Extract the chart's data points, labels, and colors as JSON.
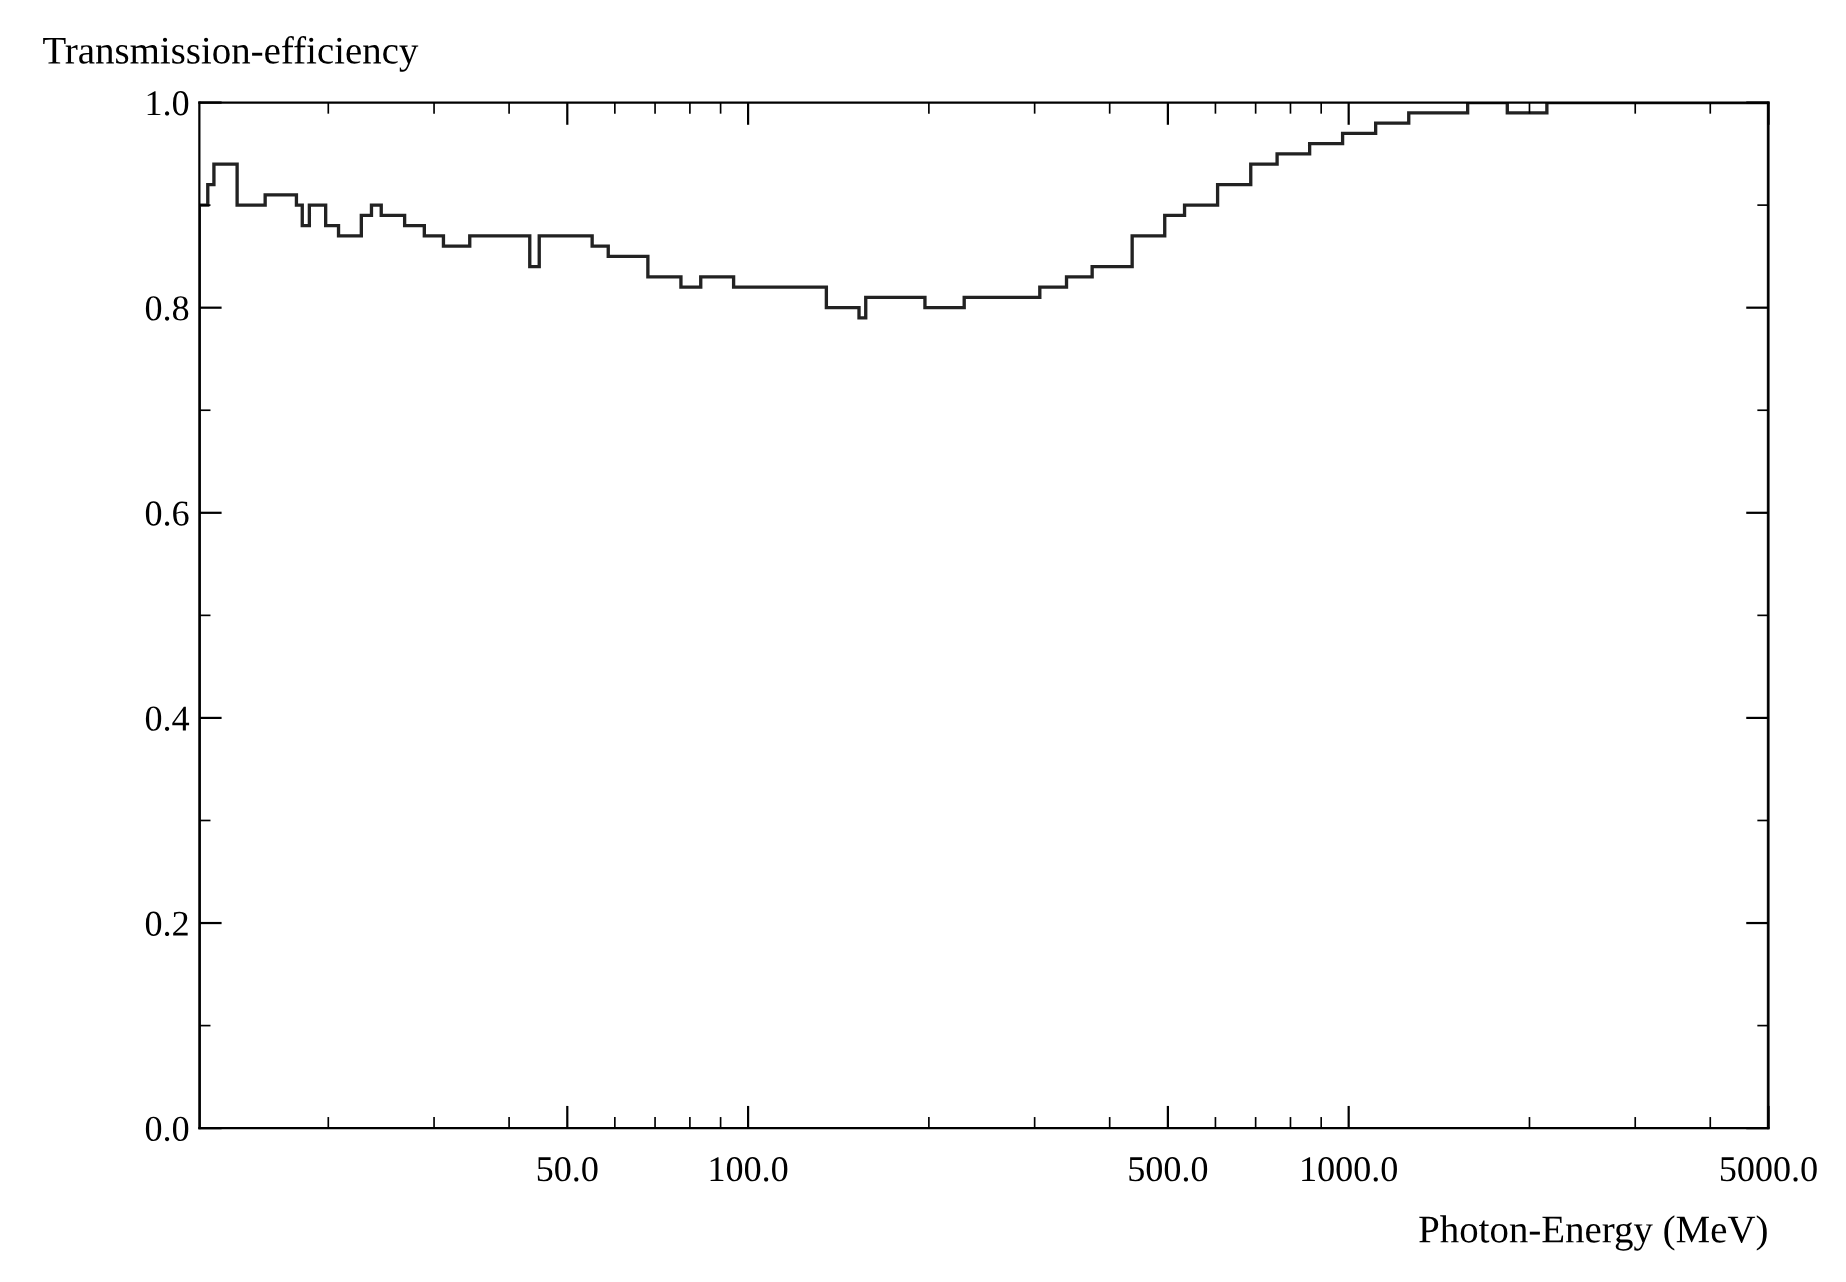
{
  "chart_data": {
    "type": "histogram",
    "xlabel": "Photon-Energy (MeV)",
    "ylabel": "Transmission-efficiency",
    "log": "x",
    "color": "#222222",
    "bins": [
      12.2,
      12.6,
      12.9,
      14.1,
      15.7,
      16.4,
      17.7,
      18.1,
      18.6,
      19.8,
      20.8,
      22.7,
      23.6,
      24.5,
      26.8,
      28.9,
      31.1,
      34.4,
      38.1,
      43.3,
      44.9,
      53.0,
      55.0,
      58.5,
      68.1,
      77.3,
      83.4,
      94.6,
      107,
      135,
      153,
      157,
      197,
      229,
      250,
      306,
      339,
      374,
      436,
      494,
      533,
      605,
      687,
      760,
      861,
      977,
      1109,
      1259,
      1466,
      1578,
      1837,
      2138,
      5000
    ],
    "values": [
      0.9,
      0.92,
      0.94,
      0.9,
      0.91,
      0.91,
      0.9,
      0.88,
      0.9,
      0.88,
      0.87,
      0.89,
      0.9,
      0.89,
      0.88,
      0.87,
      0.86,
      0.87,
      0.87,
      0.84,
      0.87,
      0.87,
      0.86,
      0.85,
      0.83,
      0.82,
      0.83,
      0.82,
      0.82,
      0.8,
      0.79,
      0.81,
      0.8,
      0.81,
      0.81,
      0.82,
      0.83,
      0.84,
      0.87,
      0.89,
      0.9,
      0.92,
      0.94,
      0.95,
      0.96,
      0.97,
      0.98,
      0.99,
      0.99,
      1.0,
      0.99,
      1.0
    ],
    "xlim": [
      12.2,
      5000
    ],
    "xticks": [
      {
        "value": 50,
        "label": "50.0"
      },
      {
        "value": 100,
        "label": "100.0"
      },
      {
        "value": 500,
        "label": "500.0"
      },
      {
        "value": 1000,
        "label": "1000.0"
      },
      {
        "value": 5000,
        "label": "5000.0"
      }
    ],
    "ylim": [
      0.0,
      1.0
    ],
    "yticks": [
      {
        "value": 0.0,
        "label": "0.0"
      },
      {
        "value": 0.2,
        "label": "0.2"
      },
      {
        "value": 0.4,
        "label": "0.4"
      },
      {
        "value": 0.6,
        "label": "0.6"
      },
      {
        "value": 0.8,
        "label": "0.8"
      },
      {
        "value": 1.0,
        "label": "1.0"
      }
    ],
    "grid": false
  }
}
